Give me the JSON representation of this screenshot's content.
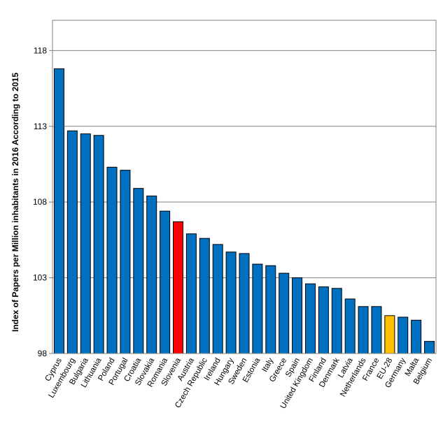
{
  "chart_data": {
    "type": "bar",
    "title": "",
    "xlabel": "",
    "ylabel": "Index of Papers per Million inhabitants in 2016  According to 2015",
    "ylim": [
      98,
      120
    ],
    "yticks": [
      98,
      103,
      108,
      113,
      118
    ],
    "grid": true,
    "legend": "none",
    "categories": [
      "Cyprus",
      "Luxembourg",
      "Bulgaria",
      "Lithuania",
      "Poland",
      "Portugal",
      "Croatia",
      "Slovakia",
      "Romania",
      "Slovenia",
      "Austria",
      "Czech Republic",
      "Ireland",
      "Hungary",
      "Sweden",
      "Estonia",
      "Italy",
      "Greece",
      "Spain",
      "United Kingdom",
      "Finland",
      "Denmark",
      "Latvia",
      "Netherlands",
      "France",
      "EU-28",
      "Germany",
      "Malta",
      "Belgium"
    ],
    "values": [
      116.8,
      112.7,
      112.5,
      112.4,
      110.3,
      110.1,
      108.9,
      108.4,
      107.4,
      106.7,
      105.9,
      105.6,
      105.2,
      104.7,
      104.6,
      103.9,
      103.8,
      103.3,
      103.0,
      102.6,
      102.4,
      102.3,
      101.6,
      101.1,
      101.1,
      100.5,
      100.4,
      100.2,
      98.8
    ],
    "colors": {
      "default": "#0070C0",
      "highlight": "#FF0000",
      "eu": "#FFC000",
      "border": "#000000",
      "grid": "#808080"
    },
    "highlight_categories": {
      "Slovenia": "highlight",
      "EU-28": "eu"
    }
  }
}
